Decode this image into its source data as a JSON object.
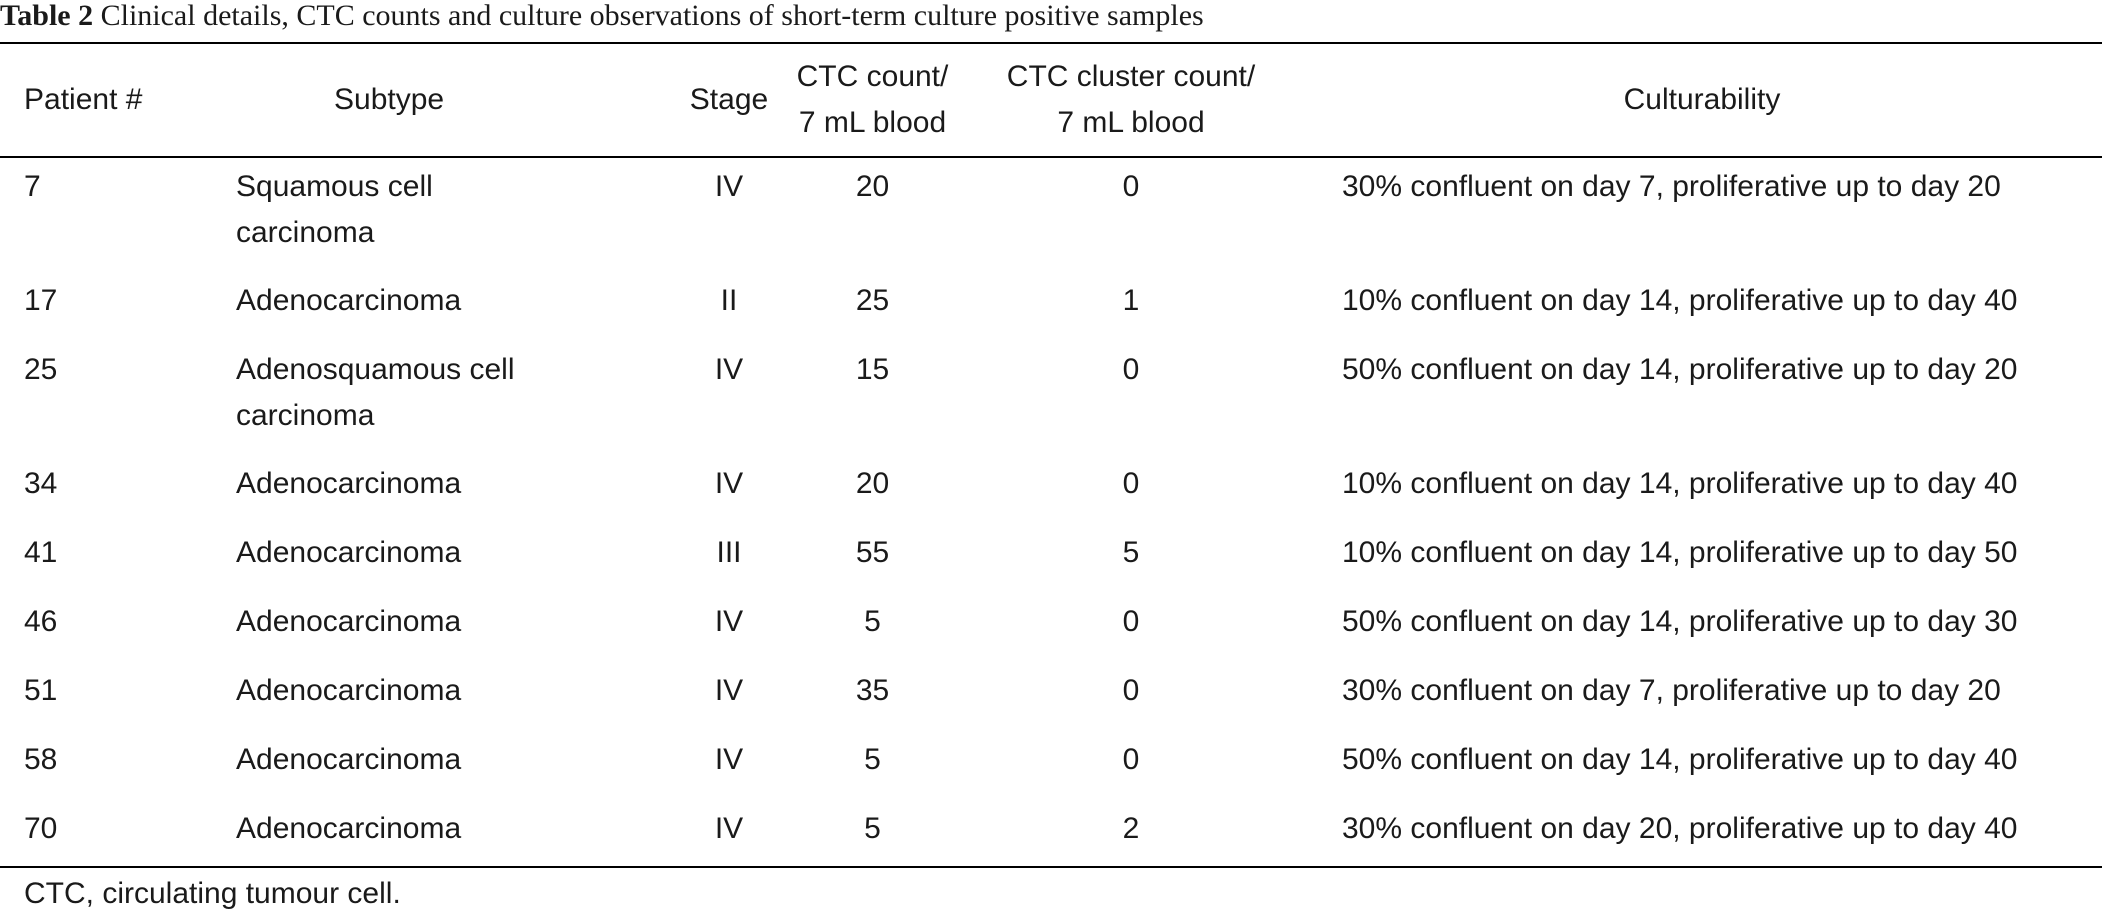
{
  "caption": {
    "label": "Table 2",
    "text": "Clinical details, CTC counts and culture observations of short-term culture positive samples"
  },
  "headers": {
    "patient": "Patient #",
    "subtype": "Subtype",
    "stage": "Stage",
    "ctc_count": [
      "CTC count/",
      "7 mL blood"
    ],
    "cluster_count": [
      "CTC cluster count/",
      "7 mL blood"
    ],
    "culturability": "Culturability"
  },
  "rows": [
    {
      "patient": "7",
      "subtype": [
        "Squamous cell",
        "carcinoma"
      ],
      "stage": "IV",
      "ctc": "20",
      "cluster": "0",
      "culture": "30% confluent on day 7, proliferative up to day 20"
    },
    {
      "patient": "17",
      "subtype": [
        "Adenocarcinoma"
      ],
      "stage": "II",
      "ctc": "25",
      "cluster": "1",
      "culture": "10% confluent on day 14, proliferative up to day 40"
    },
    {
      "patient": "25",
      "subtype": [
        "Adenosquamous cell",
        "carcinoma"
      ],
      "stage": "IV",
      "ctc": "15",
      "cluster": "0",
      "culture": "50% confluent on day 14, proliferative up to day 20"
    },
    {
      "patient": "34",
      "subtype": [
        "Adenocarcinoma"
      ],
      "stage": "IV",
      "ctc": "20",
      "cluster": "0",
      "culture": "10% confluent on day 14, proliferative up to day 40"
    },
    {
      "patient": "41",
      "subtype": [
        "Adenocarcinoma"
      ],
      "stage": "III",
      "ctc": "55",
      "cluster": "5",
      "culture": "10% confluent on day 14, proliferative up to day 50"
    },
    {
      "patient": "46",
      "subtype": [
        "Adenocarcinoma"
      ],
      "stage": "IV",
      "ctc": "5",
      "cluster": "0",
      "culture": "50% confluent on day 14, proliferative up to day 30"
    },
    {
      "patient": "51",
      "subtype": [
        "Adenocarcinoma"
      ],
      "stage": "IV",
      "ctc": "35",
      "cluster": "0",
      "culture": "30% confluent on day 7, proliferative up to day 20"
    },
    {
      "patient": "58",
      "subtype": [
        "Adenocarcinoma"
      ],
      "stage": "IV",
      "ctc": "5",
      "cluster": "0",
      "culture": "50% confluent on day 14, proliferative up to day 40"
    },
    {
      "patient": "70",
      "subtype": [
        "Adenocarcinoma"
      ],
      "stage": "IV",
      "ctc": "5",
      "cluster": "2",
      "culture": "30% confluent on day 20, proliferative up to day 40"
    }
  ],
  "footnote": "CTC, circulating tumour cell."
}
